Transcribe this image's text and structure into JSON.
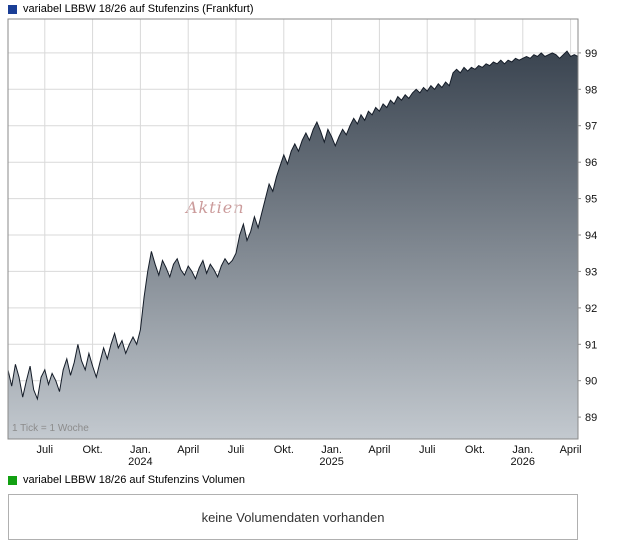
{
  "header": {
    "title": "variabel LBBW 18/26 auf Stufenzins (Frankfurt)",
    "swatch_color": "#1a3e96"
  },
  "chart_data": {
    "type": "area",
    "title": "variabel LBBW 18/26 auf Stufenzins (Frankfurt)",
    "tick_note": "1 Tick = 1 Woche",
    "watermark": "Aktien",
    "watermark_color": "#a24a4a",
    "watermark_pos": [
      186,
      198
    ],
    "grid": true,
    "legend_position": "none",
    "y_ticks": [
      89,
      90,
      91,
      92,
      93,
      94,
      95,
      96,
      97,
      98,
      99
    ],
    "y_render": [
      88.4,
      99.93
    ],
    "ylim": [
      89,
      99
    ],
    "x_ticks": [
      {
        "label": "Juli",
        "week": 10
      },
      {
        "label": "Okt.",
        "week": 23
      },
      {
        "label": "Jan.",
        "year": "2024",
        "week": 36
      },
      {
        "label": "April",
        "week": 49
      },
      {
        "label": "Juli",
        "week": 62
      },
      {
        "label": "Okt.",
        "week": 75
      },
      {
        "label": "Jan.",
        "year": "2025",
        "week": 88
      },
      {
        "label": "April",
        "week": 101
      },
      {
        "label": "Juli",
        "week": 114
      },
      {
        "label": "Okt.",
        "week": 127
      },
      {
        "label": "Jan.",
        "year": "2026",
        "week": 140
      },
      {
        "label": "April",
        "week": 153
      }
    ],
    "unit": "weeks",
    "values": [
      90.3,
      89.85,
      90.45,
      90.1,
      89.55,
      90.0,
      90.4,
      89.75,
      89.5,
      90.1,
      90.3,
      89.9,
      90.2,
      90.0,
      89.7,
      90.3,
      90.6,
      90.15,
      90.5,
      91.0,
      90.55,
      90.3,
      90.75,
      90.4,
      90.1,
      90.5,
      90.9,
      90.6,
      91.0,
      91.3,
      90.9,
      91.1,
      90.75,
      91.0,
      91.2,
      91.0,
      91.4,
      92.3,
      93.0,
      93.55,
      93.2,
      92.9,
      93.3,
      93.1,
      92.85,
      93.2,
      93.35,
      93.05,
      92.9,
      93.15,
      93.0,
      92.8,
      93.1,
      93.3,
      92.95,
      93.2,
      93.05,
      92.85,
      93.15,
      93.35,
      93.2,
      93.3,
      93.5,
      94.0,
      94.3,
      93.85,
      94.1,
      94.5,
      94.2,
      94.6,
      95.0,
      95.4,
      95.2,
      95.6,
      95.9,
      96.2,
      95.95,
      96.3,
      96.5,
      96.3,
      96.6,
      96.8,
      96.6,
      96.9,
      97.1,
      96.85,
      96.55,
      96.9,
      96.7,
      96.45,
      96.7,
      96.9,
      96.75,
      97.0,
      97.2,
      97.05,
      97.3,
      97.15,
      97.4,
      97.3,
      97.5,
      97.4,
      97.6,
      97.5,
      97.7,
      97.6,
      97.8,
      97.7,
      97.85,
      97.75,
      97.9,
      98.0,
      97.9,
      98.05,
      97.95,
      98.1,
      98.0,
      98.15,
      98.05,
      98.2,
      98.1,
      98.45,
      98.55,
      98.45,
      98.6,
      98.5,
      98.6,
      98.55,
      98.65,
      98.6,
      98.7,
      98.65,
      98.75,
      98.7,
      98.8,
      98.7,
      98.8,
      98.75,
      98.85,
      98.8,
      98.85,
      98.9,
      98.85,
      98.95,
      98.9,
      99.0,
      98.9,
      98.95,
      99.0,
      98.95,
      98.85,
      98.95,
      99.05,
      98.9,
      98.95,
      98.9
    ],
    "line_color": "#141c28",
    "fill_top": "#3a4450",
    "fill_bottom": "#c3c9cf",
    "grid_color": "#d9d9d9",
    "border_color": "#8a8a8a",
    "axis_label_color": "#111111",
    "tick_note_color": "#8c8c8c"
  },
  "volume": {
    "legend": "variabel LBBW 18/26 auf Stufenzins Volumen",
    "swatch_color": "#12a012",
    "message": "keine Volumendaten vorhanden"
  }
}
